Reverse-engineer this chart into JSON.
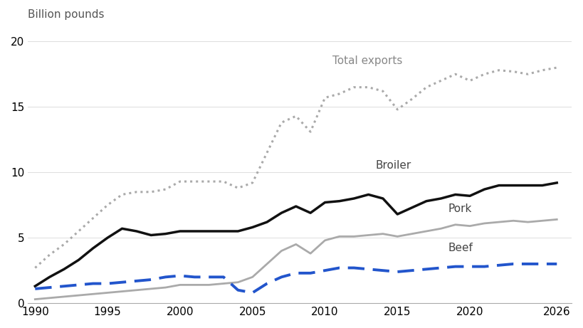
{
  "years": [
    1990,
    1991,
    1992,
    1993,
    1994,
    1995,
    1996,
    1997,
    1998,
    1999,
    2000,
    2001,
    2002,
    2003,
    2004,
    2005,
    2006,
    2007,
    2008,
    2009,
    2010,
    2011,
    2012,
    2013,
    2014,
    2015,
    2016,
    2017,
    2018,
    2019,
    2020,
    2021,
    2022,
    2023,
    2024,
    2025,
    2026
  ],
  "broiler": [
    1.3,
    2.0,
    2.6,
    3.3,
    4.2,
    5.0,
    5.7,
    5.5,
    5.2,
    5.3,
    5.5,
    5.5,
    5.5,
    5.5,
    5.5,
    5.8,
    6.2,
    6.9,
    7.4,
    6.9,
    7.7,
    7.8,
    8.0,
    8.3,
    8.0,
    6.8,
    7.3,
    7.8,
    8.0,
    8.3,
    8.2,
    8.7,
    9.0,
    9.0,
    9.0,
    9.0,
    9.2
  ],
  "pork": [
    0.3,
    0.4,
    0.5,
    0.6,
    0.7,
    0.8,
    0.9,
    1.0,
    1.1,
    1.2,
    1.4,
    1.4,
    1.4,
    1.5,
    1.6,
    2.0,
    3.0,
    4.0,
    4.5,
    3.8,
    4.8,
    5.1,
    5.1,
    5.2,
    5.3,
    5.1,
    5.3,
    5.5,
    5.7,
    6.0,
    5.9,
    6.1,
    6.2,
    6.3,
    6.2,
    6.3,
    6.4
  ],
  "beef": [
    1.1,
    1.2,
    1.3,
    1.4,
    1.5,
    1.5,
    1.6,
    1.7,
    1.8,
    2.0,
    2.1,
    2.0,
    2.0,
    2.0,
    1.0,
    0.8,
    1.5,
    2.0,
    2.3,
    2.3,
    2.5,
    2.7,
    2.7,
    2.6,
    2.5,
    2.4,
    2.5,
    2.6,
    2.7,
    2.8,
    2.8,
    2.8,
    2.9,
    3.0,
    3.0,
    3.0,
    3.0
  ],
  "total": [
    2.7,
    3.7,
    4.5,
    5.5,
    6.5,
    7.5,
    8.3,
    8.5,
    8.5,
    8.7,
    9.3,
    9.3,
    9.3,
    9.3,
    8.8,
    9.2,
    11.5,
    13.8,
    14.3,
    13.1,
    15.7,
    16.0,
    16.5,
    16.5,
    16.2,
    14.8,
    15.6,
    16.5,
    17.0,
    17.5,
    17.0,
    17.5,
    17.8,
    17.7,
    17.5,
    17.8,
    18.0
  ],
  "broiler_color": "#111111",
  "pork_color": "#aaaaaa",
  "beef_color": "#2255cc",
  "total_color": "#aaaaaa",
  "background_color": "#ffffff",
  "ylabel": "Billion pounds",
  "ylim": [
    0,
    21
  ],
  "yticks": [
    0,
    5,
    10,
    15,
    20
  ],
  "xlim": [
    1989.5,
    2027
  ],
  "xticks": [
    1990,
    1995,
    2000,
    2005,
    2010,
    2015,
    2020,
    2026
  ],
  "label_broiler": "Broiler",
  "label_pork": "Pork",
  "label_beef": "Beef",
  "label_total": "Total exports"
}
